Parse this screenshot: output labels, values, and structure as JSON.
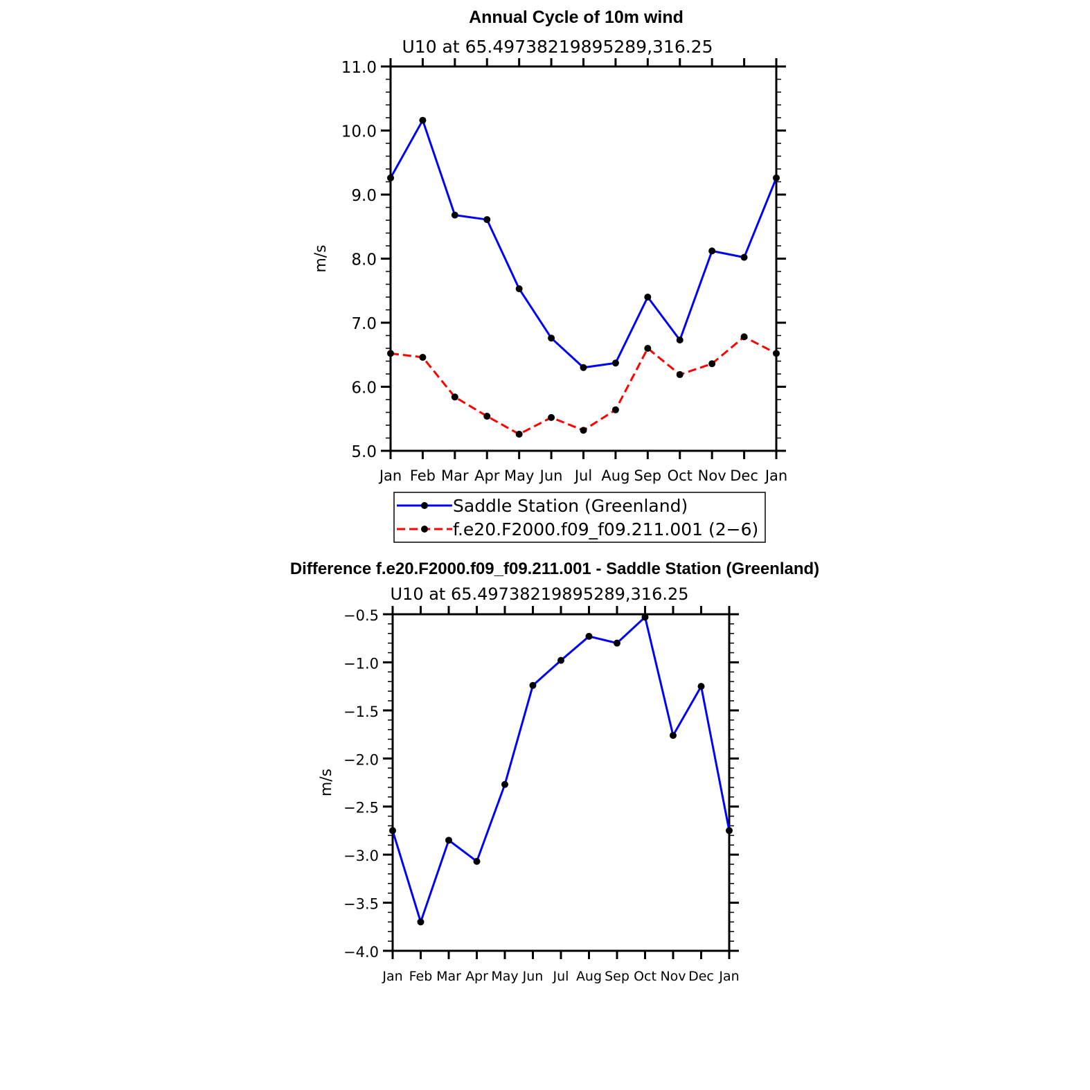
{
  "chart_data": [
    {
      "type": "line",
      "title": "Annual Cycle of 10m wind",
      "subtitle": "U10 at 65.49738219895289,316.25",
      "xlabel": "",
      "ylabel": "m/s",
      "categories": [
        "Jan",
        "Feb",
        "Mar",
        "Apr",
        "May",
        "Jun",
        "Jul",
        "Aug",
        "Sep",
        "Oct",
        "Nov",
        "Dec",
        "Jan"
      ],
      "ylim": [
        5.0,
        11.0
      ],
      "yticks": [
        "5.0",
        "6.0",
        "7.0",
        "8.0",
        "9.0",
        "10.0",
        "11.0"
      ],
      "grid": false,
      "legend": "bottom",
      "series": [
        {
          "name": "Saddle Station (Greenland)",
          "color": "#0000ff",
          "dash": false,
          "values": [
            9.26,
            10.16,
            8.68,
            8.61,
            7.53,
            6.76,
            6.3,
            6.37,
            7.4,
            6.73,
            8.12,
            8.02,
            9.26
          ]
        },
        {
          "name": "f.e20.F2000.f09_f09.211.001 (2−6)",
          "color": "#ff0000",
          "dash": true,
          "values": [
            6.52,
            6.46,
            5.84,
            5.54,
            5.26,
            5.52,
            5.32,
            5.64,
            6.6,
            6.19,
            6.36,
            6.78,
            6.52
          ]
        }
      ]
    },
    {
      "type": "line",
      "title": "Difference f.e20.F2000.f09_f09.211.001 - Saddle Station (Greenland)",
      "subtitle": "U10 at 65.49738219895289,316.25",
      "xlabel": "",
      "ylabel": "m/s",
      "categories": [
        "Jan",
        "Feb",
        "Mar",
        "Apr",
        "May",
        "Jun",
        "Jul",
        "Aug",
        "Sep",
        "Oct",
        "Nov",
        "Dec",
        "Jan"
      ],
      "ylim": [
        -4.0,
        -0.5
      ],
      "yticks": [
        "−4.0",
        "−3.5",
        "−3.0",
        "−2.5",
        "−2.0",
        "−1.5",
        "−1.0",
        "−0.5"
      ],
      "grid": false,
      "series": [
        {
          "color": "#0000ff",
          "dash": false,
          "values": [
            -2.75,
            -3.7,
            -2.85,
            -3.07,
            -2.27,
            -1.24,
            -0.98,
            -0.73,
            -0.8,
            -0.53,
            -1.76,
            -1.25,
            -2.75
          ]
        }
      ]
    }
  ]
}
